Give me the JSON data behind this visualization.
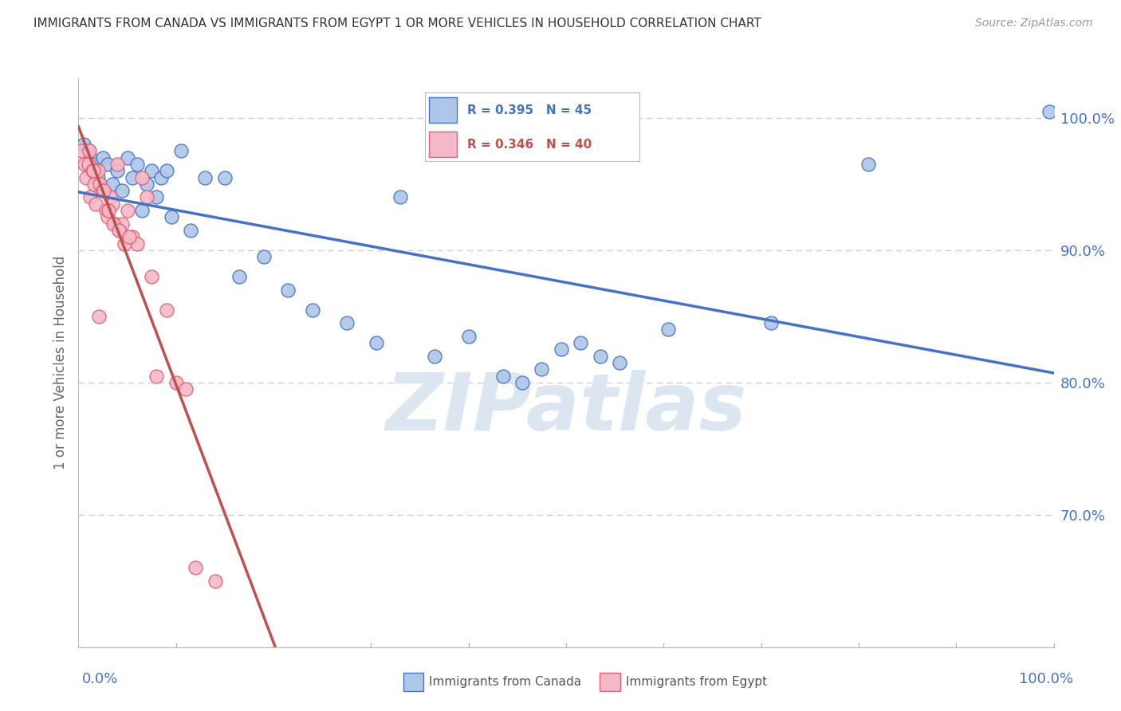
{
  "title": "IMMIGRANTS FROM CANADA VS IMMIGRANTS FROM EGYPT 1 OR MORE VEHICLES IN HOUSEHOLD CORRELATION CHART",
  "source": "Source: ZipAtlas.com",
  "ylabel": "1 or more Vehicles in Household",
  "xlim": [
    0.0,
    100.0
  ],
  "ylim": [
    60.0,
    103.0
  ],
  "yticks": [
    70.0,
    80.0,
    90.0,
    100.0
  ],
  "ytick_labels": [
    "70.0%",
    "80.0%",
    "90.0%",
    "100.0%"
  ],
  "legend_canada": "Immigrants from Canada",
  "legend_egypt": "Immigrants from Egypt",
  "canada_r": "R = 0.395",
  "canada_n": "N = 45",
  "egypt_r": "R = 0.346",
  "egypt_n": "N = 40",
  "canada_color": "#aec6e8",
  "canada_edge_color": "#4472c4",
  "egypt_color": "#f4b8c8",
  "egypt_edge_color": "#e06070",
  "canada_line_color": "#4472c4",
  "egypt_line_color": "#c0504d",
  "canada_points_x": [
    0.5,
    1.0,
    1.2,
    1.5,
    1.8,
    2.0,
    2.5,
    3.0,
    3.5,
    4.0,
    4.5,
    5.0,
    5.5,
    6.0,
    6.5,
    7.0,
    7.5,
    8.0,
    8.5,
    9.0,
    9.5,
    10.5,
    11.5,
    13.0,
    15.0,
    16.5,
    19.0,
    21.5,
    24.0,
    27.5,
    30.5,
    33.0,
    36.5,
    40.0,
    43.5,
    45.5,
    47.5,
    49.5,
    51.5,
    53.5,
    55.5,
    60.5,
    71.0,
    81.0,
    99.5
  ],
  "canada_points_y": [
    98.0,
    97.5,
    97.0,
    96.5,
    96.0,
    95.5,
    97.0,
    96.5,
    95.0,
    96.0,
    94.5,
    97.0,
    95.5,
    96.5,
    93.0,
    95.0,
    96.0,
    94.0,
    95.5,
    96.0,
    92.5,
    97.5,
    91.5,
    95.5,
    95.5,
    88.0,
    89.5,
    87.0,
    85.5,
    84.5,
    83.0,
    94.0,
    82.0,
    83.5,
    80.5,
    80.0,
    81.0,
    82.5,
    83.0,
    82.0,
    81.5,
    84.0,
    84.5,
    96.5,
    100.5
  ],
  "egypt_points_x": [
    0.3,
    0.6,
    0.8,
    1.0,
    1.2,
    1.4,
    1.6,
    1.8,
    2.0,
    2.2,
    2.5,
    2.8,
    3.0,
    3.2,
    3.5,
    3.8,
    4.0,
    4.2,
    4.5,
    5.0,
    5.5,
    6.0,
    6.5,
    7.0,
    7.5,
    8.0,
    9.0,
    10.0,
    11.0,
    12.0,
    14.0,
    1.1,
    1.5,
    2.1,
    2.6,
    3.1,
    3.6,
    4.1,
    4.7,
    5.2
  ],
  "egypt_points_y": [
    97.5,
    96.5,
    95.5,
    96.5,
    94.0,
    96.0,
    95.0,
    93.5,
    96.0,
    95.0,
    94.5,
    93.0,
    92.5,
    94.0,
    93.5,
    92.0,
    96.5,
    91.5,
    92.0,
    93.0,
    91.0,
    90.5,
    95.5,
    94.0,
    88.0,
    80.5,
    85.5,
    80.0,
    79.5,
    66.0,
    65.0,
    97.5,
    96.0,
    85.0,
    94.5,
    93.0,
    92.0,
    91.5,
    90.5,
    91.0
  ],
  "background_color": "#ffffff",
  "grid_color": "#cccccc",
  "axis_label_color": "#4472c4",
  "title_color": "#333333",
  "source_color": "#999999",
  "ylabel_color": "#666666",
  "watermark_text": "ZIPatlas",
  "watermark_color": "#dce6f0"
}
